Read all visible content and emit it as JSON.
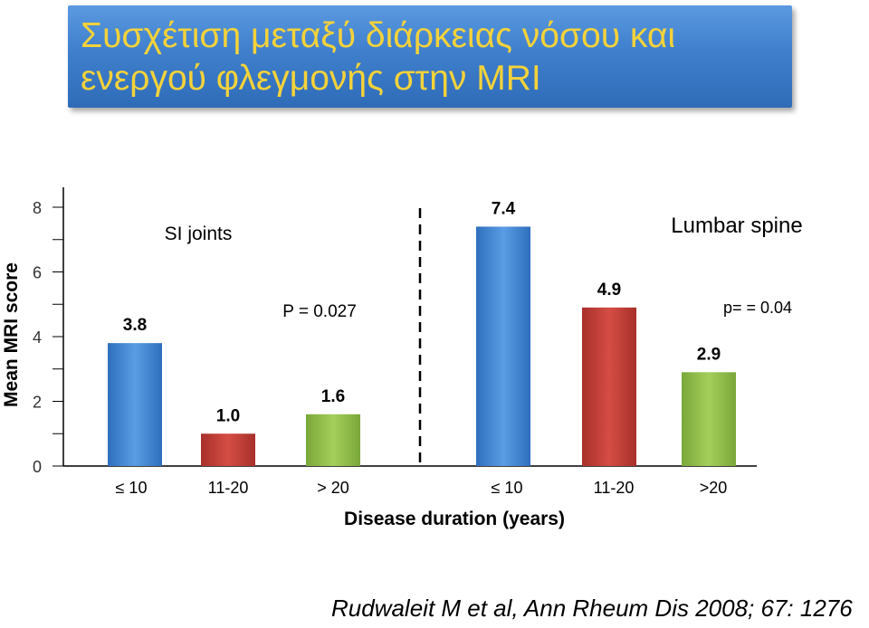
{
  "title": {
    "line1": "Συσχέτιση μεταξύ διάρκειας νόσου και",
    "line2": "ενεργού φλεγμονής στην MRI"
  },
  "chart_data": {
    "type": "bar",
    "ylabel": "Mean MRI score",
    "xlabel": "Disease duration (years)",
    "ylim": [
      0,
      8
    ],
    "yticks": [
      "0",
      "2",
      "4",
      "6",
      "8"
    ],
    "groups": [
      {
        "name": "SI joints",
        "p_value": "P = 0.027",
        "categories": [
          "≤ 10",
          "11-20",
          "> 20"
        ],
        "values": [
          3.8,
          1.0,
          1.6
        ],
        "value_labels": [
          "3.8",
          "1.0",
          "1.6"
        ],
        "colors": [
          "#4a8fd8",
          "#c8413a",
          "#93bf4a"
        ]
      },
      {
        "name": "Lumbar spine",
        "p_value": "p= = 0.04",
        "categories": [
          "≤ 10",
          "11-20",
          ">20"
        ],
        "values": [
          7.4,
          4.9,
          2.9
        ],
        "value_labels": [
          "7.4",
          "4.9",
          "2.9"
        ],
        "colors": [
          "#4a8fd8",
          "#c8413a",
          "#93bf4a"
        ]
      }
    ]
  },
  "citation": "Rudwaleit M et al, Ann Rheum Dis 2008; 67: 1276"
}
